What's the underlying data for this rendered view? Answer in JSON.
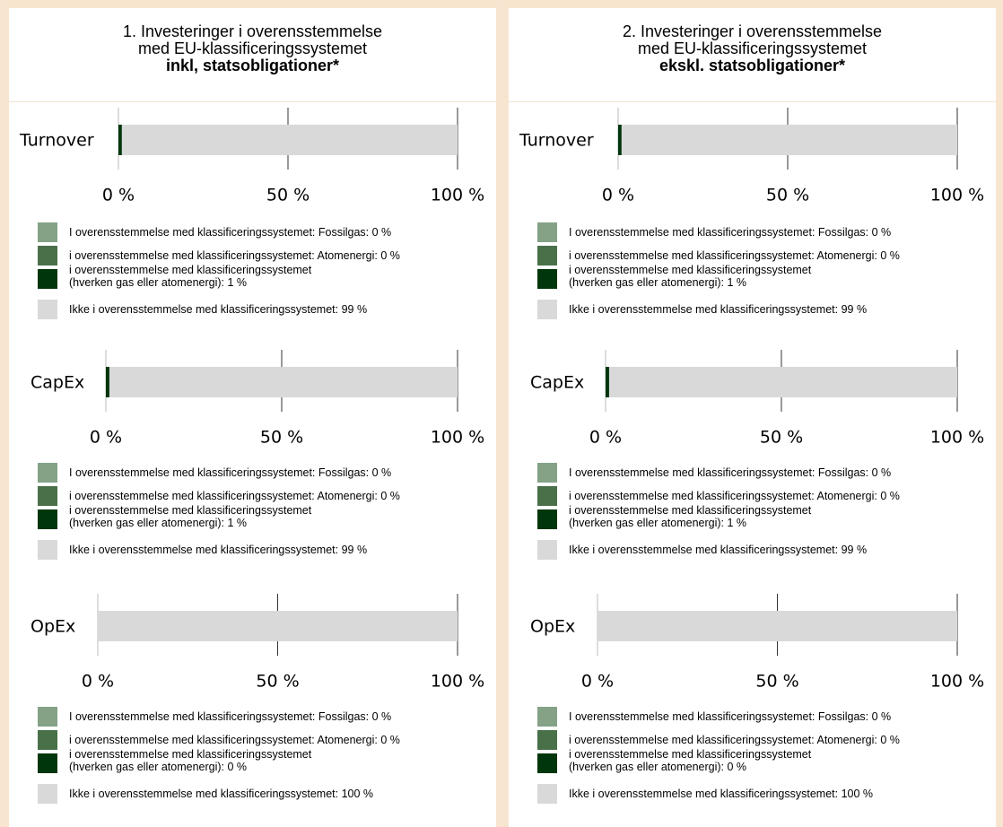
{
  "colors": {
    "fossilgas": "#85a287",
    "atomenergi": "#4a7049",
    "other_aligned": "#00360c",
    "not_aligned": "#d9d9d9"
  },
  "legend_labels": [
    "I overensstemmelse med klassificeringssystemet: Fossilgas: 0 %",
    "i overensstemmelse med klassificeringssystemet: Atomenergi: 0 %",
    "i overensstemmelse med klassificeringssystemet",
    "(hverken gas eller atomenergi): 1 %",
    "Ikke i overensstemmelse med klassificeringssystemet: 99 %",
    "(hverken gas eller atomenergi): 0 %",
    "Ikke i overensstemmelse med klassificeringssystemet: 100 %"
  ],
  "chart_data": [
    {
      "type": "bar",
      "orientation": "horizontal",
      "stacked": true,
      "title": [
        "1. Investeringer i overensstemmelse",
        "med EU-klassificeringssystemet",
        "inkl, statsobligationer*"
      ],
      "xlim": [
        0,
        100
      ],
      "x_ticks": [
        "0 %",
        "50 %",
        "100 %"
      ],
      "charts": [
        {
          "category": "Turnover",
          "segments": [
            {
              "name": "I overensstemmelse med klassificeringssystemet: Fossilgas",
              "value": 0
            },
            {
              "name": "i overensstemmelse med klassificeringssystemet: Atomenergi",
              "value": 0
            },
            {
              "name": "i overensstemmelse med klassificeringssystemet (hverken gas eller atomenergi)",
              "value": 1
            },
            {
              "name": "Ikke i overensstemmelse med klassificeringssystemet",
              "value": 99
            }
          ]
        },
        {
          "category": "CapEx",
          "segments": [
            {
              "name": "I overensstemmelse med klassificeringssystemet: Fossilgas",
              "value": 0
            },
            {
              "name": "i overensstemmelse med klassificeringssystemet: Atomenergi",
              "value": 0
            },
            {
              "name": "i overensstemmelse med klassificeringssystemet (hverken gas eller atomenergi)",
              "value": 1
            },
            {
              "name": "Ikke i overensstemmelse med klassificeringssystemet",
              "value": 99
            }
          ]
        },
        {
          "category": "OpEx",
          "segments": [
            {
              "name": "I overensstemmelse med klassificeringssystemet: Fossilgas",
              "value": 0
            },
            {
              "name": "i overensstemmelse med klassificeringssystemet: Atomenergi",
              "value": 0
            },
            {
              "name": "i overensstemmelse med klassificeringssystemet (hverken gas eller atomenergi)",
              "value": 0
            },
            {
              "name": "Ikke i overensstemmelse med klassificeringssystemet",
              "value": 100
            }
          ]
        }
      ]
    },
    {
      "type": "bar",
      "orientation": "horizontal",
      "stacked": true,
      "title": [
        "2. Investeringer i overensstemmelse",
        "med EU-klassificeringssystemet",
        "ekskl. statsobligationer*"
      ],
      "xlim": [
        0,
        100
      ],
      "x_ticks": [
        "0 %",
        "50 %",
        "100 %"
      ],
      "charts": [
        {
          "category": "Turnover",
          "segments": [
            {
              "name": "I overensstemmelse med klassificeringssystemet: Fossilgas",
              "value": 0
            },
            {
              "name": "i overensstemmelse med klassificeringssystemet: Atomenergi",
              "value": 0
            },
            {
              "name": "i overensstemmelse med klassificeringssystemet (hverken gas eller atomenergi)",
              "value": 1
            },
            {
              "name": "Ikke i overensstemmelse med klassificeringssystemet",
              "value": 99
            }
          ]
        },
        {
          "category": "CapEx",
          "segments": [
            {
              "name": "I overensstemmelse med klassificeringssystemet: Fossilgas",
              "value": 0
            },
            {
              "name": "i overensstemmelse med klassificeringssystemet: Atomenergi",
              "value": 0
            },
            {
              "name": "i overensstemmelse med klassificeringssystemet (hverken gas eller atomenergi)",
              "value": 1
            },
            {
              "name": "Ikke i overensstemmelse med klassificeringssystemet",
              "value": 99
            }
          ]
        },
        {
          "category": "OpEx",
          "segments": [
            {
              "name": "I overensstemmelse med klassificeringssystemet: Fossilgas",
              "value": 0
            },
            {
              "name": "i overensstemmelse med klassificeringssystemet: Atomenergi",
              "value": 0
            },
            {
              "name": "i overensstemmelse med klassificeringssystemet (hverken gas eller atomenergi)",
              "value": 0
            },
            {
              "name": "Ikke i overensstemmelse med klassificeringssystemet",
              "value": 100
            }
          ]
        }
      ]
    }
  ]
}
